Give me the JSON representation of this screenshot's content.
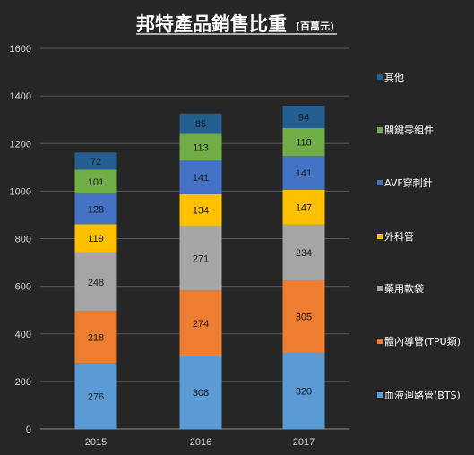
{
  "chart_data": {
    "type": "bar",
    "stacked": true,
    "title": "邦特產品銷售比重",
    "subtitle": "(百萬元)",
    "categories": [
      "2015",
      "2016",
      "2017"
    ],
    "ylim": [
      0,
      1600
    ],
    "yticks": [
      0,
      200,
      400,
      600,
      800,
      1000,
      1200,
      1400,
      1600
    ],
    "grid": true,
    "legend_position": "right",
    "series": [
      {
        "name": "血液迴路管(BTS)",
        "color": "#5b9bd5",
        "values": [
          276,
          308,
          320
        ]
      },
      {
        "name": "體內導管(TPU類)",
        "color": "#ed7d31",
        "values": [
          218,
          274,
          305
        ]
      },
      {
        "name": "藥用軟袋",
        "color": "#a5a5a5",
        "values": [
          248,
          271,
          234
        ]
      },
      {
        "name": "外科管",
        "color": "#ffc000",
        "values": [
          119,
          134,
          147
        ]
      },
      {
        "name": "AVF穿刺針",
        "color": "#4472c4",
        "values": [
          128,
          141,
          141
        ]
      },
      {
        "name": "關鍵零組件",
        "color": "#70ad47",
        "values": [
          101,
          113,
          118
        ]
      },
      {
        "name": "其他",
        "color": "#255e91",
        "values": [
          72,
          85,
          94
        ]
      }
    ]
  }
}
